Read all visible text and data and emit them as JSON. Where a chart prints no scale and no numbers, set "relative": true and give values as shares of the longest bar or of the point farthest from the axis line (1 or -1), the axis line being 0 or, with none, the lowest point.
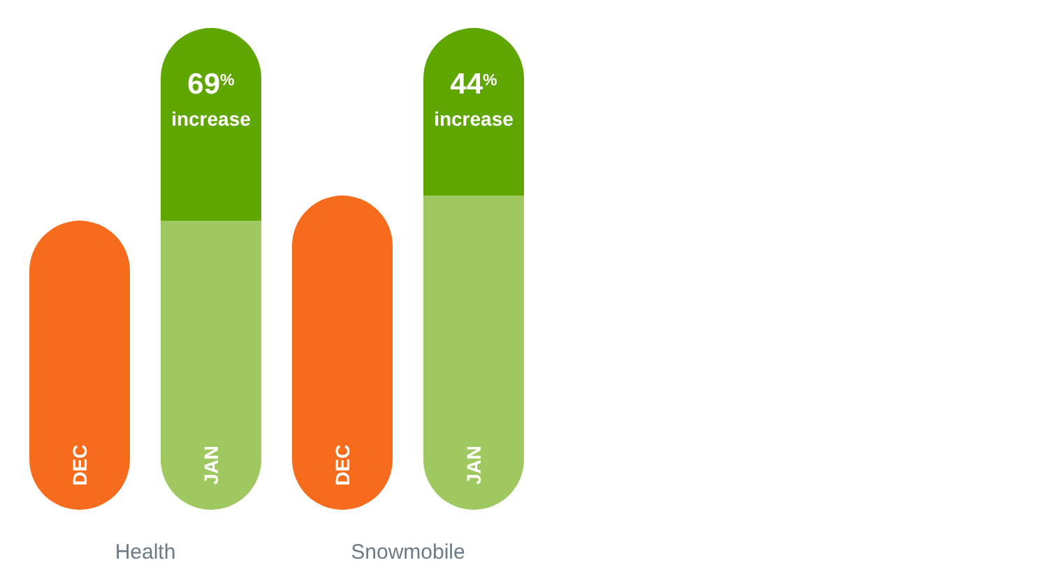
{
  "chart_data": {
    "type": "bar",
    "relative": true,
    "stacked": true,
    "categories": [
      "DEC",
      "JAN",
      "DEC",
      "JAN"
    ],
    "series": [
      {
        "colors": [
          "#f76b1c",
          "#a0c860",
          "#f76b1c",
          "#a0c860"
        ],
        "values": [
          0.6,
          0.6,
          0.652,
          0.652
        ]
      },
      {
        "color": "#60a600",
        "values": [
          null,
          0.4,
          null,
          0.348
        ]
      }
    ],
    "annotations": [
      "69$^{%}$ increase",
      "44$^{%}$ increase",
      "Health",
      "Snowmobile"
    ]
  }
}
